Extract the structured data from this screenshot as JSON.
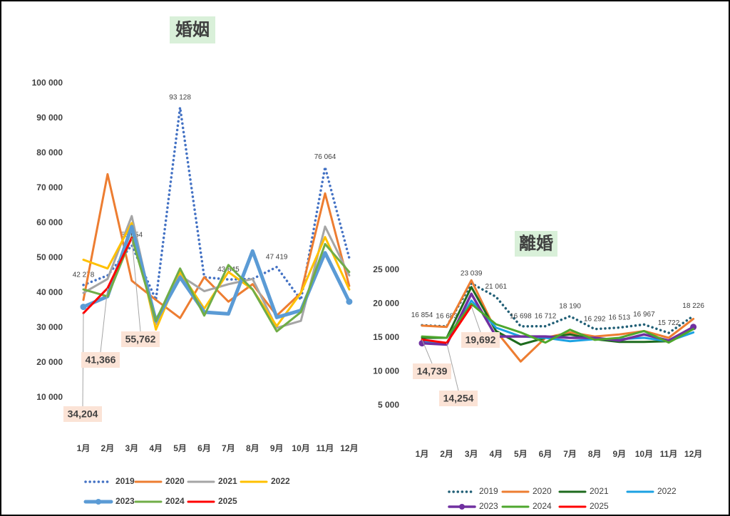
{
  "chart_data": [
    {
      "type": "line",
      "title": "婚姻",
      "legend": "bottom",
      "grid": false,
      "categories": [
        "1月",
        "2月",
        "3月",
        "4月",
        "5月",
        "6月",
        "7月",
        "8月",
        "9月",
        "10月",
        "11月",
        "12月"
      ],
      "ylim": [
        0,
        100000
      ],
      "yticks": [
        {
          "value": 10000,
          "label": "10 000"
        },
        {
          "value": 20000,
          "label": "20 000"
        },
        {
          "value": 30000,
          "label": "30 000"
        },
        {
          "value": 40000,
          "label": "40 000"
        },
        {
          "value": 50000,
          "label": "50 000"
        },
        {
          "value": 60000,
          "label": "60 000"
        },
        {
          "value": 70000,
          "label": "70 000"
        },
        {
          "value": 80000,
          "label": "80 000"
        },
        {
          "value": 90000,
          "label": "90 000"
        },
        {
          "value": 100000,
          "label": "100 000"
        }
      ],
      "series": [
        {
          "name": "2019",
          "color": "#4472c4",
          "style": "dotted",
          "values": [
            42278,
            45000,
            53654,
            38000,
            93128,
            44500,
            43845,
            44000,
            47419,
            38000,
            76064,
            50000
          ],
          "value_labels": [
            "42 278",
            null,
            "53 654",
            null,
            "93 128",
            null,
            "43 845",
            null,
            "47 419",
            null,
            "76 064",
            null
          ]
        },
        {
          "name": "2020",
          "color": "#ed7d31",
          "values": [
            38000,
            74000,
            43500,
            38000,
            32800,
            44500,
            37500,
            42500,
            33500,
            40000,
            68500,
            42000
          ]
        },
        {
          "name": "2021",
          "color": "#a5a5a5",
          "values": [
            40000,
            44000,
            62000,
            31000,
            45000,
            40500,
            42500,
            44000,
            30000,
            32000,
            59000,
            45000
          ]
        },
        {
          "name": "2022",
          "color": "#ffc000",
          "values": [
            49500,
            47000,
            60000,
            29500,
            46000,
            35500,
            46000,
            41000,
            30500,
            40000,
            56000,
            41000
          ]
        },
        {
          "name": "2023",
          "color": "#5b9bd5",
          "marker": true,
          "values": [
            36000,
            39000,
            59000,
            32000,
            44500,
            34500,
            34000,
            52000,
            33000,
            35000,
            51500,
            37500
          ]
        },
        {
          "name": "2024",
          "color": "#70ad47",
          "values": [
            41000,
            39000,
            56000,
            32000,
            47000,
            33500,
            48000,
            41000,
            29000,
            34500,
            54000,
            46000
          ]
        },
        {
          "name": "2025",
          "color": "#ff0000",
          "values": [
            34204,
            41366,
            55762,
            null,
            null,
            null,
            null,
            null,
            null,
            null,
            null,
            null
          ],
          "value_labels": [
            "34,204",
            "41,366",
            "55,762",
            null,
            null,
            null,
            null,
            null,
            null,
            null,
            null,
            null
          ]
        }
      ]
    },
    {
      "type": "line",
      "title": "離婚",
      "legend": "bottom",
      "grid": false,
      "categories": [
        "1月",
        "2月",
        "3月",
        "4月",
        "5月",
        "6月",
        "7月",
        "8月",
        "9月",
        "10月",
        "11月",
        "12月"
      ],
      "ylim": [
        0,
        25000
      ],
      "yticks": [
        {
          "value": 5000,
          "label": "5 000"
        },
        {
          "value": 10000,
          "label": "10 000"
        },
        {
          "value": 15000,
          "label": "15 000"
        },
        {
          "value": 20000,
          "label": "20 000"
        },
        {
          "value": 25000,
          "label": "25 000"
        }
      ],
      "series": [
        {
          "name": "2019",
          "color": "#215f76",
          "style": "dotted",
          "values": [
            16854,
            16683,
            23039,
            21061,
            16698,
            16712,
            18190,
            16292,
            16513,
            16967,
            15722,
            18226
          ],
          "value_labels": [
            "16 854",
            "16 683",
            "23 039",
            "21 061",
            "16 698",
            "16 712",
            "18 190",
            "16 292",
            "16 513",
            "16 967",
            "15 722",
            "18 226"
          ]
        },
        {
          "name": "2020",
          "color": "#ed7d31",
          "values": [
            16800,
            16600,
            23500,
            16000,
            11500,
            15000,
            15800,
            15200,
            15500,
            16000,
            15000,
            17800
          ]
        },
        {
          "name": "2021",
          "color": "#1e6b1e",
          "values": [
            15000,
            15000,
            22500,
            16000,
            14000,
            15000,
            15500,
            14800,
            14400,
            14400,
            14500,
            16500
          ]
        },
        {
          "name": "2022",
          "color": "#1ba1e2",
          "values": [
            14500,
            14200,
            20500,
            16500,
            15200,
            15000,
            14500,
            14800,
            14800,
            15000,
            14500,
            15800
          ]
        },
        {
          "name": "2023",
          "color": "#7030a0",
          "marker": true,
          "values": [
            14200,
            14000,
            21500,
            15200,
            15200,
            15200,
            15000,
            15000,
            14600,
            15500,
            14600,
            16600
          ]
        },
        {
          "name": "2024",
          "color": "#4ea72e",
          "values": [
            15200,
            15000,
            20000,
            17000,
            15800,
            14300,
            16200,
            14700,
            15000,
            16000,
            14300,
            16300
          ]
        },
        {
          "name": "2025",
          "color": "#ff0000",
          "values": [
            14739,
            14254,
            19692,
            null,
            null,
            null,
            null,
            null,
            null,
            null,
            null,
            null
          ],
          "value_labels": [
            "14,739",
            "14,254",
            "19,692",
            null,
            null,
            null,
            null,
            null,
            null,
            null,
            null,
            null
          ]
        }
      ]
    }
  ]
}
